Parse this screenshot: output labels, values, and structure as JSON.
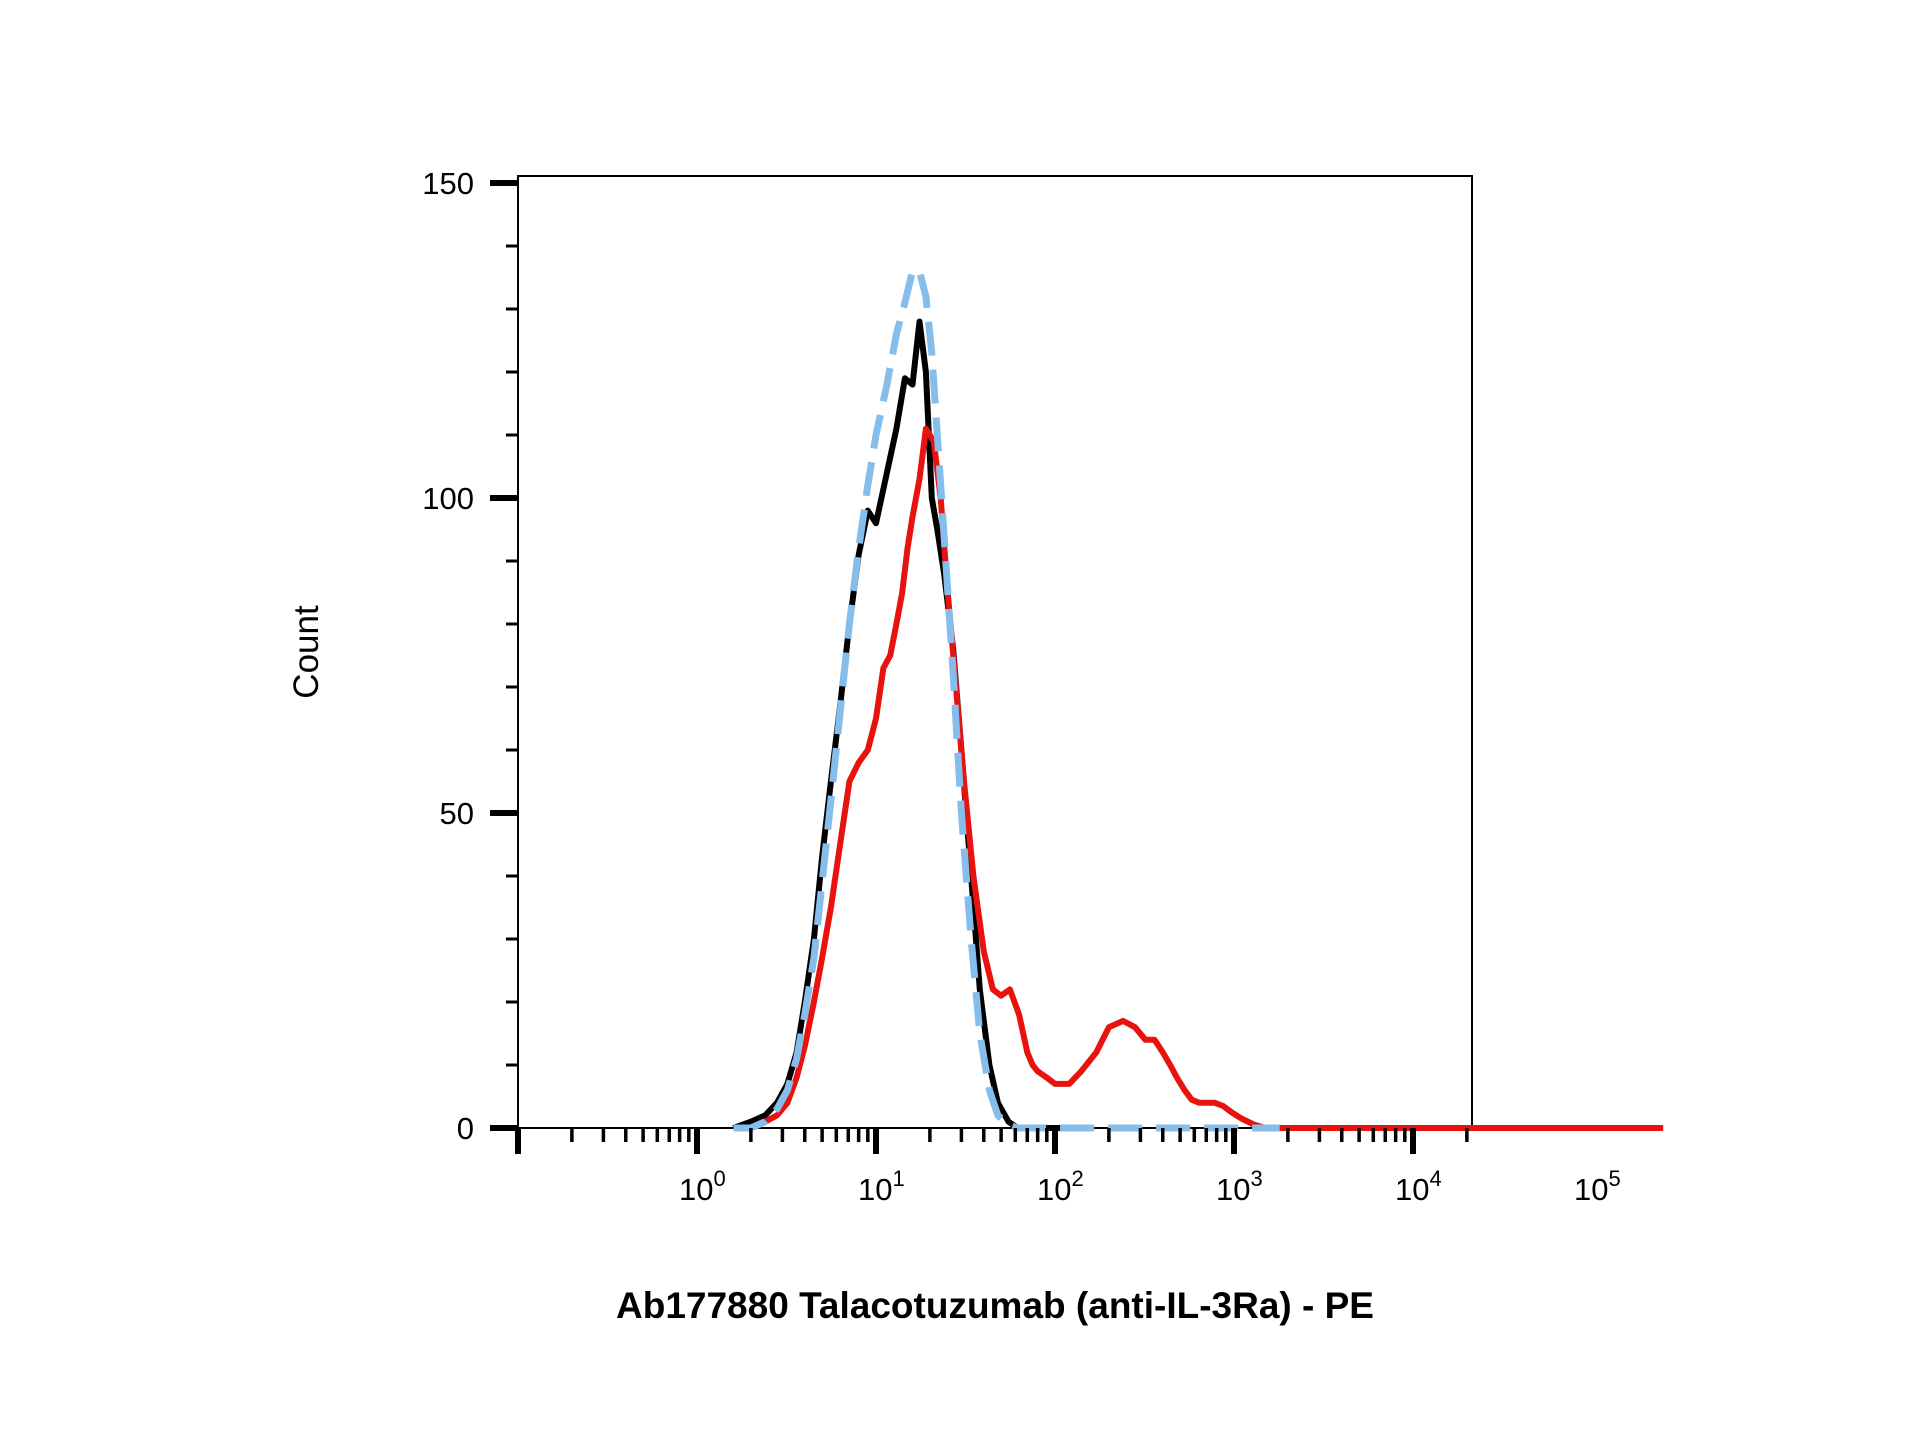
{
  "chart_data": {
    "type": "line",
    "title": "",
    "xlabel": "Ab177880 Talacotuzumab (anti-IL-3Ra) - PE",
    "ylabel": "Count",
    "x_scale": "log",
    "xlim": [
      0.6,
      250000
    ],
    "ylim": [
      0,
      150
    ],
    "grid": false,
    "legend": "none",
    "x_ticks": [
      {
        "base": "10",
        "exp": "0",
        "value": 1
      },
      {
        "base": "10",
        "exp": "1",
        "value": 10
      },
      {
        "base": "10",
        "exp": "2",
        "value": 100
      },
      {
        "base": "10",
        "exp": "3",
        "value": 1000
      },
      {
        "base": "10",
        "exp": "4",
        "value": 10000
      },
      {
        "base": "10",
        "exp": "5",
        "value": 100000
      }
    ],
    "y_ticks": [
      {
        "label": "0",
        "value": 0
      },
      {
        "label": "50",
        "value": 50
      },
      {
        "label": "100",
        "value": 100
      },
      {
        "label": "150",
        "value": 150
      }
    ],
    "series": [
      {
        "color": "#000000",
        "style": "solid",
        "x": [
          1.6,
          2.0,
          2.4,
          2.8,
          3.2,
          3.6,
          4.0,
          4.5,
          5.0,
          5.6,
          6.3,
          7.1,
          8.0,
          9.0,
          10.0,
          11.5,
          13.0,
          14.5,
          16.0,
          17.5,
          19.0,
          20.5,
          22.0,
          24.0,
          27.0,
          30.0,
          34.0,
          38.0,
          43.0,
          48.0,
          55.0,
          62.0,
          70.0,
          80.0,
          90.0,
          100.0,
          130.0
        ],
        "y": [
          0,
          1,
          2,
          4,
          7,
          12,
          20,
          30,
          43,
          55,
          67,
          80,
          91,
          98,
          96,
          104,
          111,
          119,
          118,
          128,
          120,
          100,
          95,
          88,
          76,
          60,
          40,
          22,
          10,
          4,
          1,
          0,
          0,
          0,
          0,
          0,
          0
        ]
      },
      {
        "color": "#85BDEB",
        "style": "dashed",
        "x": [
          1.6,
          2.0,
          2.4,
          2.8,
          3.2,
          3.6,
          4.0,
          4.5,
          5.0,
          5.6,
          6.3,
          7.1,
          8.0,
          9.0,
          10.0,
          11.5,
          13.0,
          14.5,
          16.0,
          17.5,
          19.0,
          20.5,
          22.0,
          24.0,
          27.0,
          30.0,
          34.0,
          38.0,
          43.0,
          48.0,
          55.0,
          62.0,
          70.0,
          80.0,
          100.0,
          200.0,
          1000.0,
          1800.0
        ],
        "y": [
          0,
          0,
          1,
          3,
          6,
          11,
          18,
          27,
          39,
          52,
          66,
          80,
          92,
          102,
          110,
          118,
          126,
          131,
          136,
          136,
          132,
          123,
          110,
          94,
          72,
          50,
          30,
          15,
          6,
          2,
          0.5,
          0,
          0,
          0,
          0,
          0,
          0,
          0
        ]
      },
      {
        "color": "#E8130F",
        "style": "solid",
        "x": [
          1.6,
          2.0,
          2.4,
          2.8,
          3.2,
          3.6,
          4.0,
          4.5,
          5.0,
          5.6,
          6.3,
          7.1,
          8.0,
          9.0,
          10.0,
          11.0,
          12.0,
          13.0,
          14.0,
          15.0,
          16.0,
          17.5,
          19.0,
          21.0,
          23.0,
          25.0,
          28.0,
          31.0,
          35.0,
          40.0,
          45.0,
          50.0,
          56.0,
          63.0,
          70.0,
          75.0,
          80.0,
          90.0,
          100.0,
          120.0,
          140.0,
          170.0,
          200.0,
          240.0,
          280.0,
          320.0,
          360.0,
          400.0,
          440.0,
          480.0,
          530.0,
          580.0,
          640.0,
          700.0,
          780.0,
          870.0,
          970.0,
          1100.0,
          1300.0,
          1500.0,
          1750.0,
          2000.0,
          2300.0,
          2600.0,
          3000.0,
          3500.0,
          4500.0,
          10000.0,
          100000.0,
          250000.0
        ],
        "y": [
          0,
          0,
          1,
          2,
          4,
          8,
          13,
          20,
          27,
          35,
          45,
          55,
          58,
          60,
          65,
          73,
          75,
          80,
          85,
          92,
          97,
          103,
          111,
          109,
          100,
          86,
          70,
          55,
          40,
          28,
          22,
          21,
          22,
          18,
          12,
          10,
          9,
          8,
          7,
          7,
          9,
          12,
          16,
          17,
          16,
          14,
          14,
          12,
          10,
          8,
          6,
          4.5,
          4,
          4,
          4,
          3.5,
          2.5,
          1.5,
          0.5,
          0,
          0,
          0,
          0,
          0,
          0,
          0,
          0,
          0,
          0,
          0
        ]
      }
    ]
  }
}
